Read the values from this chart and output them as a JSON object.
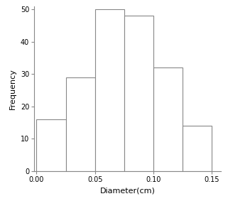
{
  "bin_edges": [
    0.0,
    0.025,
    0.05,
    0.075,
    0.1,
    0.125,
    0.15
  ],
  "frequencies": [
    16,
    29,
    50,
    48,
    32,
    14
  ],
  "xlim": [
    -0.002,
    0.158
  ],
  "ylim": [
    0,
    51
  ],
  "xticks": [
    0.0,
    0.05,
    0.1,
    0.15
  ],
  "yticks": [
    0,
    10,
    20,
    30,
    40,
    50
  ],
  "xlabel": "Diameter(cm)",
  "ylabel": "Frequency",
  "bar_facecolor": "#ffffff",
  "bar_edgecolor": "#888888",
  "background_color": "#ffffff",
  "tick_fontsize": 7,
  "label_fontsize": 8
}
